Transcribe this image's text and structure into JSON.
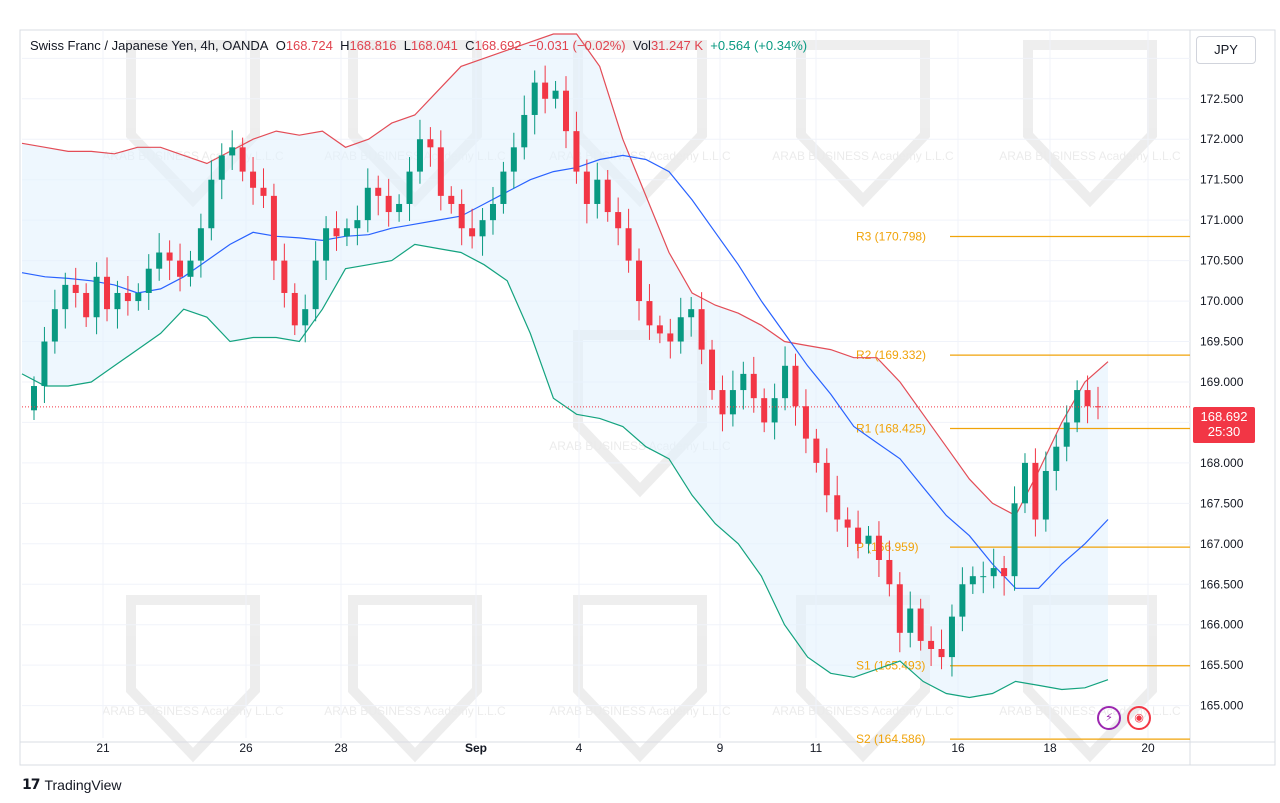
{
  "legend": {
    "symbol": "Swiss Franc / Japanese Yen, 4h, OANDA",
    "o_label": "O",
    "o": "168.724",
    "h_label": "H",
    "h": "168.816",
    "l_label": "L",
    "l": "168.041",
    "c_label": "C",
    "c": "168.692",
    "change": "−0.031 (−0.02%)",
    "vol_label": "Vol",
    "vol": "31.247 K",
    "vol_change": "+0.564 (+0.34%)"
  },
  "currency": "JPY",
  "last_price": "168.692",
  "countdown": "25:30",
  "brand": "TradingView",
  "watermark": "ARAB BUSINESS Academy L.L.C",
  "colors": {
    "up": "#089981",
    "down": "#f23645",
    "middle_band": "#2962ff",
    "upper_band": "#e34d57",
    "lower_band": "#14a37f",
    "pivot": "#f0a30a",
    "band_fill": "#e3f2fd"
  },
  "chart_data": {
    "type": "candlestick",
    "timeframe": "4h",
    "x_ticks": [
      "21",
      "26",
      "28",
      "Sep",
      "4",
      "9",
      "11",
      "16",
      "18",
      "20"
    ],
    "y_ticks": [
      165.0,
      165.5,
      166.0,
      166.5,
      167.0,
      167.5,
      168.0,
      168.5,
      169.0,
      169.5,
      170.0,
      170.5,
      171.0,
      171.5,
      172.0,
      172.5,
      173.0
    ],
    "ylim": [
      164.6,
      173.35
    ],
    "pivot_levels": [
      {
        "name": "R3",
        "label": "R3 (170.798)",
        "value": 170.798
      },
      {
        "name": "R2",
        "label": "R2 (169.332)",
        "value": 169.332
      },
      {
        "name": "R1",
        "label": "R1 (168.425)",
        "value": 168.425
      },
      {
        "name": "P",
        "label": "P (166.959)",
        "value": 166.959
      },
      {
        "name": "S1",
        "label": "S1 (165.493)",
        "value": 165.493
      },
      {
        "name": "S2",
        "label": "S2 (164.586)",
        "value": 164.586
      }
    ],
    "closes": [
      168.95,
      169.5,
      169.9,
      170.2,
      170.1,
      169.8,
      170.3,
      169.9,
      170.1,
      170.0,
      170.1,
      170.4,
      170.6,
      170.5,
      170.3,
      170.5,
      170.9,
      171.5,
      171.8,
      171.9,
      171.6,
      171.4,
      171.3,
      170.5,
      170.1,
      169.7,
      169.9,
      170.5,
      170.9,
      170.8,
      170.9,
      171.0,
      171.4,
      171.3,
      171.1,
      171.2,
      171.6,
      172.0,
      171.9,
      171.3,
      171.2,
      170.9,
      170.8,
      171.0,
      171.2,
      171.6,
      171.9,
      172.3,
      172.7,
      172.5,
      172.6,
      172.1,
      171.6,
      171.2,
      171.5,
      171.1,
      170.9,
      170.5,
      170.0,
      169.7,
      169.6,
      169.5,
      169.8,
      169.9,
      169.4,
      168.9,
      168.6,
      168.9,
      169.1,
      168.8,
      168.5,
      168.8,
      169.2,
      168.7,
      168.3,
      168.0,
      167.6,
      167.3,
      167.2,
      167.0,
      167.1,
      166.8,
      166.5,
      165.9,
      166.2,
      165.8,
      165.7,
      165.6,
      166.1,
      166.5,
      166.6,
      166.6,
      166.7,
      166.6,
      167.5,
      168.0,
      167.3,
      167.9,
      168.2,
      168.5,
      168.9,
      168.7,
      168.69
    ],
    "bollinger": {
      "middle": [
        170.35,
        170.3,
        170.28,
        170.25,
        170.2,
        170.1,
        170.15,
        170.3,
        170.5,
        170.7,
        170.85,
        170.8,
        170.78,
        170.75,
        170.8,
        170.82,
        170.9,
        170.95,
        171.0,
        171.05,
        171.2,
        171.35,
        171.5,
        171.6,
        171.65,
        171.75,
        171.8,
        171.75,
        171.6,
        171.25,
        170.85,
        170.45,
        170.0,
        169.6,
        169.2,
        168.85,
        168.45,
        168.25,
        168.05,
        167.7,
        167.35,
        167.1,
        166.75,
        166.45,
        166.45,
        166.75,
        167.0,
        167.3
      ],
      "upper": [
        171.95,
        171.9,
        171.85,
        171.85,
        171.82,
        171.9,
        171.9,
        171.8,
        171.7,
        171.85,
        172.0,
        172.1,
        172.05,
        172.1,
        171.9,
        172.0,
        172.2,
        172.3,
        172.6,
        172.9,
        173.0,
        173.1,
        173.2,
        173.3,
        173.3,
        172.9,
        172.0,
        171.3,
        170.6,
        170.1,
        169.95,
        169.85,
        169.7,
        169.5,
        169.45,
        169.4,
        169.3,
        169.3,
        169.0,
        168.6,
        168.2,
        167.8,
        167.5,
        167.35,
        167.9,
        168.5,
        169.0,
        169.25
      ],
      "lower": [
        169.1,
        168.95,
        168.95,
        169.0,
        169.2,
        169.4,
        169.6,
        169.9,
        169.8,
        169.5,
        169.55,
        169.55,
        169.5,
        169.9,
        170.4,
        170.45,
        170.5,
        170.7,
        170.65,
        170.6,
        170.45,
        170.25,
        169.6,
        168.8,
        168.6,
        168.55,
        168.45,
        168.2,
        168.05,
        167.6,
        167.25,
        167.0,
        166.6,
        166.0,
        165.6,
        165.4,
        165.35,
        165.45,
        165.55,
        165.3,
        165.15,
        165.1,
        165.15,
        165.3,
        165.25,
        165.2,
        165.22,
        165.32
      ]
    }
  }
}
